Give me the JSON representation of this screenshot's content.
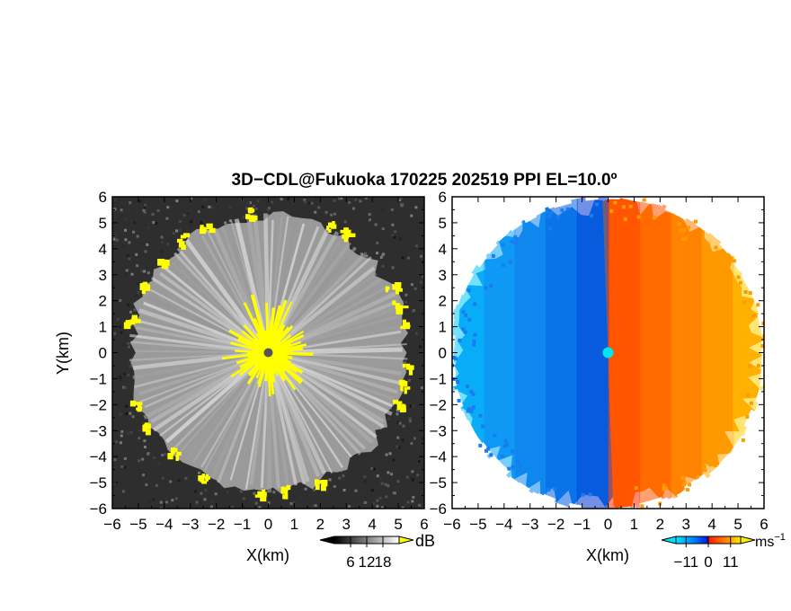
{
  "figure": {
    "title": "3D−CDL@Fukuoka 170225 202519 PPI EL=10.0º"
  },
  "chart_data": [
    {
      "type": "heatmap",
      "panel": "left",
      "quantity": "SNR",
      "xlabel": "X(km)",
      "ylabel": "Y(km)",
      "xlim": [
        -6,
        6
      ],
      "ylim": [
        -6,
        6
      ],
      "xticks": [
        "−6",
        "−5",
        "−4",
        "−3",
        "−2",
        "−1",
        "0",
        "1",
        "2",
        "3",
        "4",
        "5",
        "6"
      ],
      "yticks": [
        "6",
        "5",
        "4",
        "3",
        "2",
        "1",
        "0",
        "−1",
        "−2",
        "−3",
        "−4",
        "−5",
        "−6"
      ],
      "colorbar": {
        "unit": "dB",
        "tick_labels": [
          "6",
          "12",
          "18"
        ],
        "tick_values": [
          6,
          12,
          18
        ],
        "range": [
          0,
          24
        ],
        "colors": [
          "#000000",
          "#ffffff"
        ],
        "over_color": "#ffff00"
      },
      "radar_center": [
        0,
        0
      ],
      "max_range_km": 5.3,
      "features": {
        "background": "noise",
        "radial_streaks": true,
        "saturated_color": "#ffff00",
        "center_marker_color": "#555555"
      }
    },
    {
      "type": "heatmap",
      "panel": "right",
      "quantity": "Doppler velocity",
      "xlabel": "X(km)",
      "xlim": [
        -6,
        6
      ],
      "ylim": [
        -6,
        6
      ],
      "xticks": [
        "−6",
        "−5",
        "−4",
        "−3",
        "−2",
        "−1",
        "0",
        "1",
        "2",
        "3",
        "4",
        "5",
        "6"
      ],
      "yticks": [
        "6",
        "5",
        "4",
        "3",
        "2",
        "1",
        "0",
        "−1",
        "−2",
        "−3",
        "−4",
        "−5",
        "−6"
      ],
      "colorbar": {
        "unit": "ms",
        "unit_exponent": "−1",
        "tick_labels": [
          "−11",
          "0",
          "11"
        ],
        "tick_values": [
          -11,
          0,
          11
        ],
        "range": [
          -16,
          16
        ],
        "colors": [
          "#00e5ff",
          "#0077ff",
          "#0011cc",
          "#ff1a00",
          "#ff7a00",
          "#ffee00"
        ]
      },
      "radar_center": [
        0,
        0
      ],
      "center_marker_color": "#00e5ee",
      "flow": "receding on the east side, approaching on the west side"
    }
  ]
}
